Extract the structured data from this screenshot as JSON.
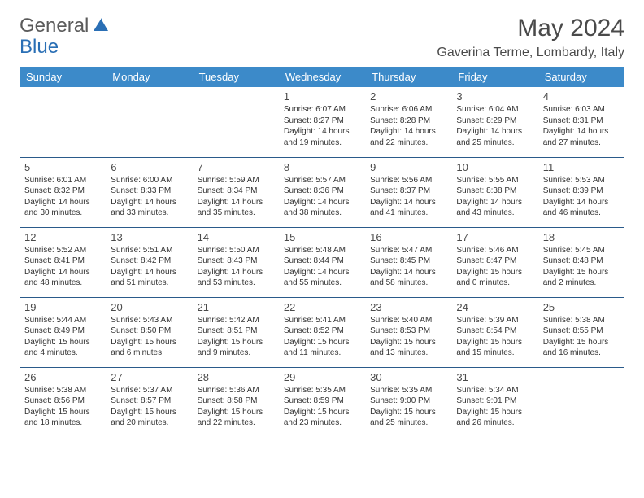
{
  "brand": {
    "part1": "General",
    "part2": "Blue"
  },
  "title": "May 2024",
  "location": "Gaverina Terme, Lombardy, Italy",
  "day_headers": [
    "Sunday",
    "Monday",
    "Tuesday",
    "Wednesday",
    "Thursday",
    "Friday",
    "Saturday"
  ],
  "colors": {
    "header_bg": "#3c8ac9",
    "header_text": "#ffffff",
    "rule": "#2a5a8a",
    "title_text": "#4a4a4a",
    "cell_text": "#333333",
    "brand_gray": "#5a5a5a",
    "brand_blue": "#2a6fb5"
  },
  "weeks": [
    [
      null,
      null,
      null,
      {
        "n": "1",
        "sr": "6:07 AM",
        "ss": "8:27 PM",
        "dl": "14 hours and 19 minutes."
      },
      {
        "n": "2",
        "sr": "6:06 AM",
        "ss": "8:28 PM",
        "dl": "14 hours and 22 minutes."
      },
      {
        "n": "3",
        "sr": "6:04 AM",
        "ss": "8:29 PM",
        "dl": "14 hours and 25 minutes."
      },
      {
        "n": "4",
        "sr": "6:03 AM",
        "ss": "8:31 PM",
        "dl": "14 hours and 27 minutes."
      }
    ],
    [
      {
        "n": "5",
        "sr": "6:01 AM",
        "ss": "8:32 PM",
        "dl": "14 hours and 30 minutes."
      },
      {
        "n": "6",
        "sr": "6:00 AM",
        "ss": "8:33 PM",
        "dl": "14 hours and 33 minutes."
      },
      {
        "n": "7",
        "sr": "5:59 AM",
        "ss": "8:34 PM",
        "dl": "14 hours and 35 minutes."
      },
      {
        "n": "8",
        "sr": "5:57 AM",
        "ss": "8:36 PM",
        "dl": "14 hours and 38 minutes."
      },
      {
        "n": "9",
        "sr": "5:56 AM",
        "ss": "8:37 PM",
        "dl": "14 hours and 41 minutes."
      },
      {
        "n": "10",
        "sr": "5:55 AM",
        "ss": "8:38 PM",
        "dl": "14 hours and 43 minutes."
      },
      {
        "n": "11",
        "sr": "5:53 AM",
        "ss": "8:39 PM",
        "dl": "14 hours and 46 minutes."
      }
    ],
    [
      {
        "n": "12",
        "sr": "5:52 AM",
        "ss": "8:41 PM",
        "dl": "14 hours and 48 minutes."
      },
      {
        "n": "13",
        "sr": "5:51 AM",
        "ss": "8:42 PM",
        "dl": "14 hours and 51 minutes."
      },
      {
        "n": "14",
        "sr": "5:50 AM",
        "ss": "8:43 PM",
        "dl": "14 hours and 53 minutes."
      },
      {
        "n": "15",
        "sr": "5:48 AM",
        "ss": "8:44 PM",
        "dl": "14 hours and 55 minutes."
      },
      {
        "n": "16",
        "sr": "5:47 AM",
        "ss": "8:45 PM",
        "dl": "14 hours and 58 minutes."
      },
      {
        "n": "17",
        "sr": "5:46 AM",
        "ss": "8:47 PM",
        "dl": "15 hours and 0 minutes."
      },
      {
        "n": "18",
        "sr": "5:45 AM",
        "ss": "8:48 PM",
        "dl": "15 hours and 2 minutes."
      }
    ],
    [
      {
        "n": "19",
        "sr": "5:44 AM",
        "ss": "8:49 PM",
        "dl": "15 hours and 4 minutes."
      },
      {
        "n": "20",
        "sr": "5:43 AM",
        "ss": "8:50 PM",
        "dl": "15 hours and 6 minutes."
      },
      {
        "n": "21",
        "sr": "5:42 AM",
        "ss": "8:51 PM",
        "dl": "15 hours and 9 minutes."
      },
      {
        "n": "22",
        "sr": "5:41 AM",
        "ss": "8:52 PM",
        "dl": "15 hours and 11 minutes."
      },
      {
        "n": "23",
        "sr": "5:40 AM",
        "ss": "8:53 PM",
        "dl": "15 hours and 13 minutes."
      },
      {
        "n": "24",
        "sr": "5:39 AM",
        "ss": "8:54 PM",
        "dl": "15 hours and 15 minutes."
      },
      {
        "n": "25",
        "sr": "5:38 AM",
        "ss": "8:55 PM",
        "dl": "15 hours and 16 minutes."
      }
    ],
    [
      {
        "n": "26",
        "sr": "5:38 AM",
        "ss": "8:56 PM",
        "dl": "15 hours and 18 minutes."
      },
      {
        "n": "27",
        "sr": "5:37 AM",
        "ss": "8:57 PM",
        "dl": "15 hours and 20 minutes."
      },
      {
        "n": "28",
        "sr": "5:36 AM",
        "ss": "8:58 PM",
        "dl": "15 hours and 22 minutes."
      },
      {
        "n": "29",
        "sr": "5:35 AM",
        "ss": "8:59 PM",
        "dl": "15 hours and 23 minutes."
      },
      {
        "n": "30",
        "sr": "5:35 AM",
        "ss": "9:00 PM",
        "dl": "15 hours and 25 minutes."
      },
      {
        "n": "31",
        "sr": "5:34 AM",
        "ss": "9:01 PM",
        "dl": "15 hours and 26 minutes."
      },
      null
    ]
  ],
  "labels": {
    "sunrise": "Sunrise:",
    "sunset": "Sunset:",
    "daylight": "Daylight:"
  }
}
